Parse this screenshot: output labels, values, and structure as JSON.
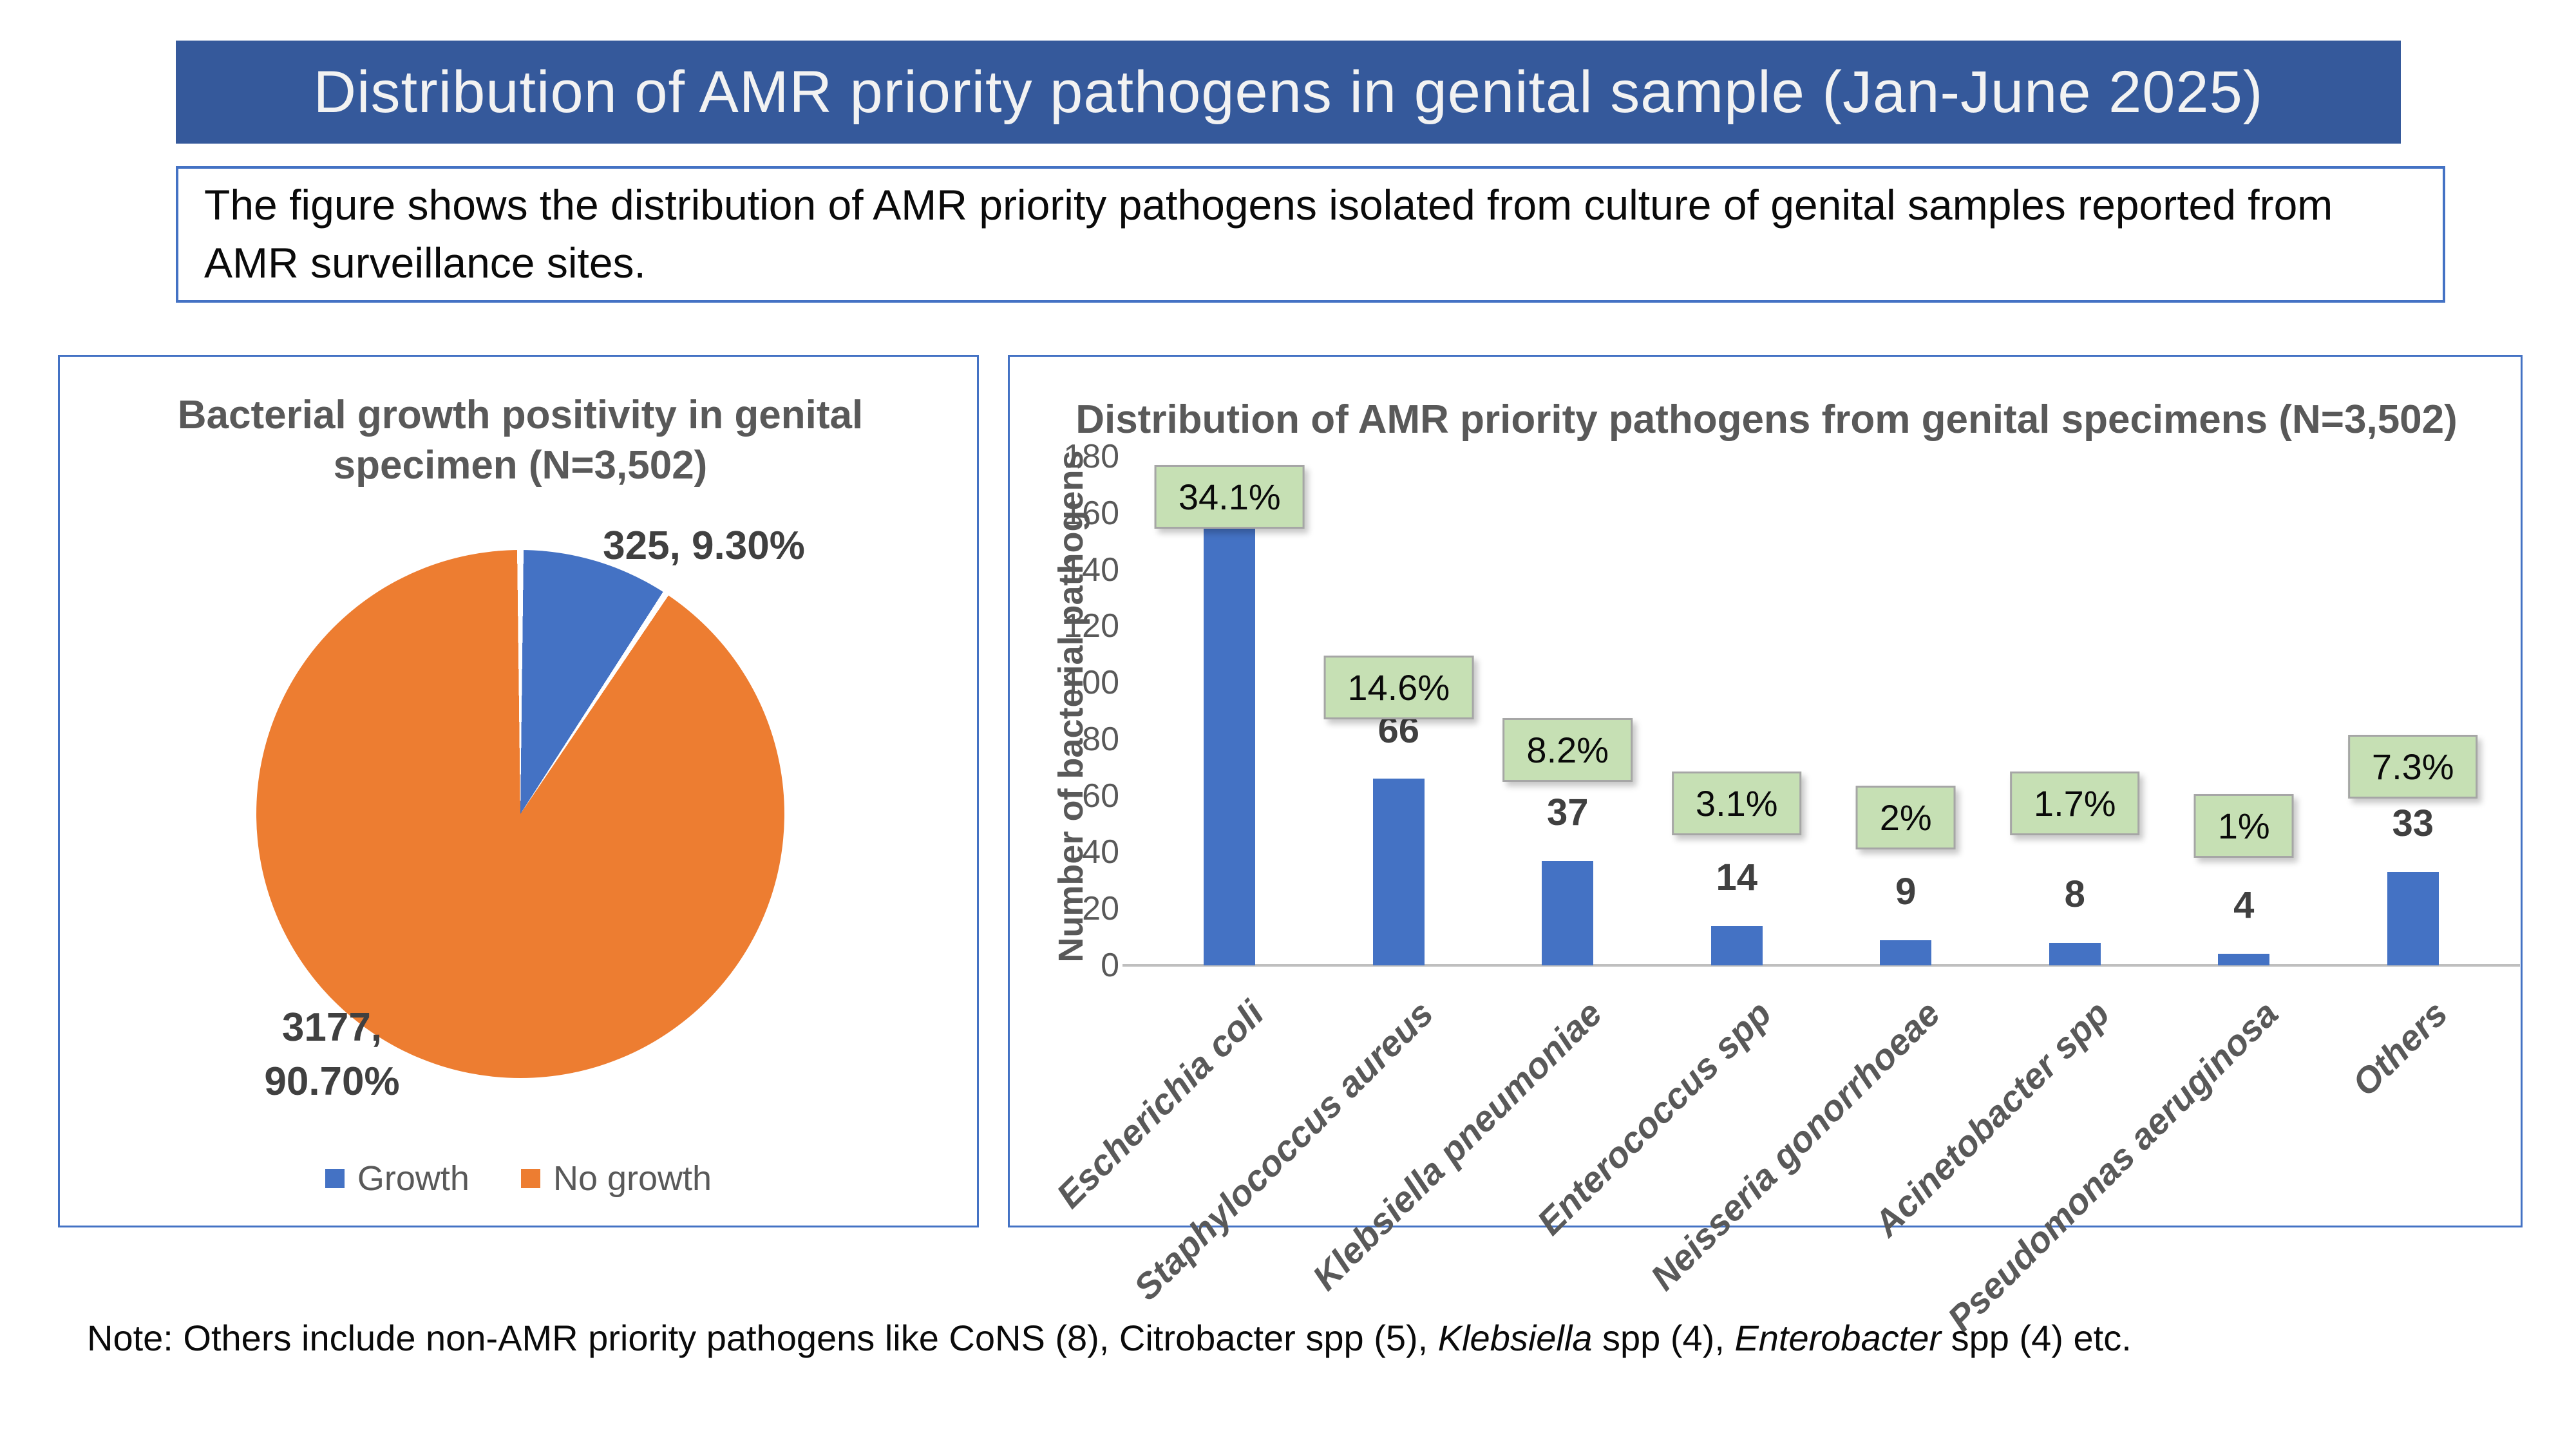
{
  "banner": {
    "title": "Distribution of AMR priority pathogens in genital sample (Jan-June 2025)",
    "bg_color": "#35599B"
  },
  "description": {
    "text": "The figure shows the distribution of AMR priority pathogens isolated from culture of genital samples reported from AMR surveillance sites."
  },
  "pie_panel": {
    "title": "Bacterial growth positivity in genital specimen (N=3,502)",
    "growth_label": "325, 9.30%",
    "no_growth_label_line1": "3177,",
    "no_growth_label_line2": "90.70%"
  },
  "bar_panel": {
    "title": "Distribution of AMR priority pathogens from genital specimens (N=3,502)",
    "y_axis_label": "Number of bacterial pathogens"
  },
  "note": {
    "part1": "Note: Others include non-AMR priority pathogens like CoNS (8), Citrobacter spp (5), ",
    "italic1": "Klebsiella",
    "part2": " spp (4), ",
    "italic2": "Enterobacter",
    "part3": " spp (4) etc."
  },
  "colors": {
    "accent_blue": "#4472C4",
    "accent_orange": "#ED7D31",
    "pct_box_green": "#C6E0B4",
    "axis_gray": "#BFBFBF",
    "text_gray": "#595959"
  },
  "chart_data": [
    {
      "type": "pie",
      "title": "Bacterial growth positivity in genital specimen (N=3,502)",
      "labels": [
        "Growth",
        "No growth"
      ],
      "values": [
        325,
        3177
      ],
      "percent_labels": [
        "9.30%",
        "90.70%"
      ],
      "colors": [
        "#4472C4",
        "#ED7D31"
      ],
      "legend_position": "bottom",
      "start_angle_deg": 0,
      "total": 3502
    },
    {
      "type": "bar",
      "title": "Distribution of AMR priority pathogens from genital specimens (N=3,502)",
      "categories": [
        "Escherichia coli",
        "Staphylococcus aureus",
        "Klebsiella pneumoniae",
        "Enterococcus spp",
        "Neisseria gonorrhoeae",
        "Acinetobacter spp",
        "Pseudomonas aeruginosa",
        "Others"
      ],
      "values": [
        155,
        66,
        37,
        14,
        9,
        8,
        4,
        33
      ],
      "value_labels": [
        "",
        "66",
        "37",
        "14",
        "9",
        "8",
        "4",
        "33"
      ],
      "percent_labels": [
        "34.1%",
        "14.6%",
        "8.2%",
        "3.1%",
        "2%",
        "1.7%",
        "1%",
        "7.3%"
      ],
      "xlabel": "",
      "ylabel": "Number of bacterial pathogens",
      "ylim": [
        0,
        180
      ],
      "ytick_step": 20,
      "y_tick_labels": [
        "0",
        "20",
        "40",
        "60",
        "80",
        "100",
        "120",
        "140",
        "160",
        "180"
      ],
      "grid": false,
      "bar_color": "#4472C4",
      "layout_hints": {
        "pct_box_bottom_units": [
          154.5,
          87,
          65,
          46,
          41,
          46,
          38,
          59
        ],
        "x_labels_rotation_deg": -45,
        "x_labels_italic": true
      }
    }
  ]
}
